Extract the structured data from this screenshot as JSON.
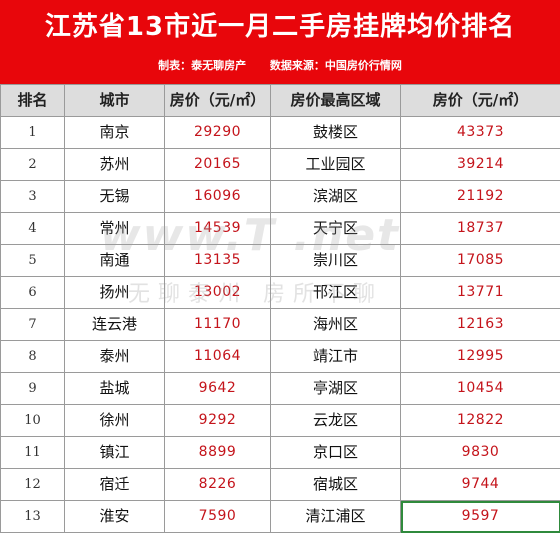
{
  "header": {
    "title": "江苏省13市近一月二手房挂牌均价排名",
    "maker": "制表：泰无聊房产",
    "source": "数据来源：中国房价行情网"
  },
  "columns": [
    "排名",
    "城市",
    "房价（元/㎡）",
    "房价最高区域",
    "房价（元/㎡）"
  ],
  "rows": [
    {
      "rank": "1",
      "city": "南京",
      "price": "29290",
      "district": "鼓楼区",
      "district_price": "43373"
    },
    {
      "rank": "2",
      "city": "苏州",
      "price": "20165",
      "district": "工业园区",
      "district_price": "39214"
    },
    {
      "rank": "3",
      "city": "无锡",
      "price": "16096",
      "district": "滨湖区",
      "district_price": "21192"
    },
    {
      "rank": "4",
      "city": "常州",
      "price": "14539",
      "district": "天宁区",
      "district_price": "18737"
    },
    {
      "rank": "5",
      "city": "南通",
      "price": "13135",
      "district": "崇川区",
      "district_price": "17085"
    },
    {
      "rank": "6",
      "city": "扬州",
      "price": "13002",
      "district": "邗江区",
      "district_price": "13771"
    },
    {
      "rank": "7",
      "city": "连云港",
      "price": "11170",
      "district": "海州区",
      "district_price": "12163"
    },
    {
      "rank": "8",
      "city": "泰州",
      "price": "11064",
      "district": "靖江市",
      "district_price": "12995"
    },
    {
      "rank": "9",
      "city": "盐城",
      "price": "9642",
      "district": "亭湖区",
      "district_price": "10454"
    },
    {
      "rank": "10",
      "city": "徐州",
      "price": "9292",
      "district": "云龙区",
      "district_price": "12822"
    },
    {
      "rank": "11",
      "city": "镇江",
      "price": "8899",
      "district": "京口区",
      "district_price": "9830"
    },
    {
      "rank": "12",
      "city": "宿迁",
      "price": "8226",
      "district": "宿城区",
      "district_price": "9744"
    },
    {
      "rank": "13",
      "city": "淮安",
      "price": "7590",
      "district": "清江浦区",
      "district_price": "9597"
    }
  ],
  "watermark": {
    "line1": "www.T    .net",
    "line2": "无聊泰州   房所不聊"
  },
  "colors": {
    "header_bg": "#e8060b",
    "price_text": "#c4141b",
    "column_header_bg": "#dddddd",
    "selected_cell_border": "#2f8a3c"
  }
}
